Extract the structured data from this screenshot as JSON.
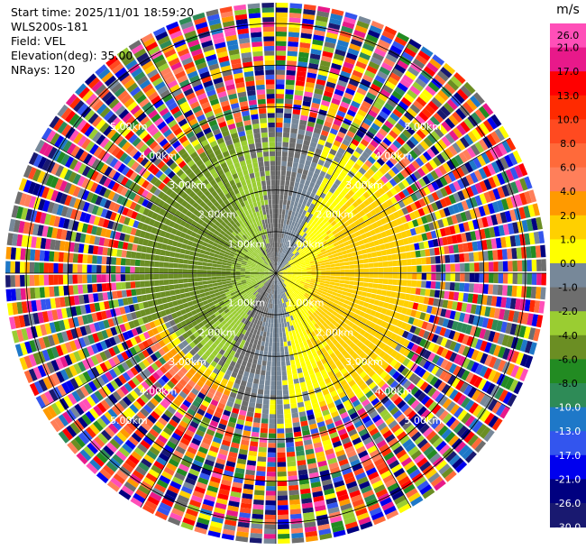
{
  "header": {
    "start_time": "Start time: 2025/11/01 18:59:20",
    "instrument": "WLS200s-181",
    "field": "Field: VEL",
    "elevation": "Elevation(deg): 35.00",
    "nrays": "NRays: 120"
  },
  "chart_data": {
    "type": "heatmap",
    "projection": "polar-ppi",
    "field": "VEL",
    "n_rays": 120,
    "range_rings_km": [
      1,
      2,
      3,
      4,
      5,
      6
    ],
    "range_labels": [
      "1.00km",
      "2.00km",
      "3.00km",
      "4.00km",
      "5.00km"
    ],
    "colorbar": {
      "unit": "m/s",
      "ticks": [
        "26.0",
        "21.0",
        "17.0",
        "13.0",
        "10.0",
        "8.0",
        "6.0",
        "4.0",
        "2.0",
        "1.0",
        "0.0",
        "-1.0",
        "-2.0",
        "-4.0",
        "-6.0",
        "-8.0",
        "-10.0",
        "-13.0",
        "-17.0",
        "-21.0",
        "-26.0",
        "-30.0"
      ],
      "colors": [
        "#ff4fb8",
        "#e8198a",
        "#ff0000",
        "#ff2a00",
        "#ff4a20",
        "#ff6a3a",
        "#ff7f5a",
        "#ff9a00",
        "#ffd000",
        "#ffff00",
        "#778899",
        "#6e6e6e",
        "#9acd32",
        "#6b8e23",
        "#228b22",
        "#2e8b57",
        "#1e78c8",
        "#3355ee",
        "#0000ee",
        "#000080",
        "#191970"
      ]
    }
  }
}
